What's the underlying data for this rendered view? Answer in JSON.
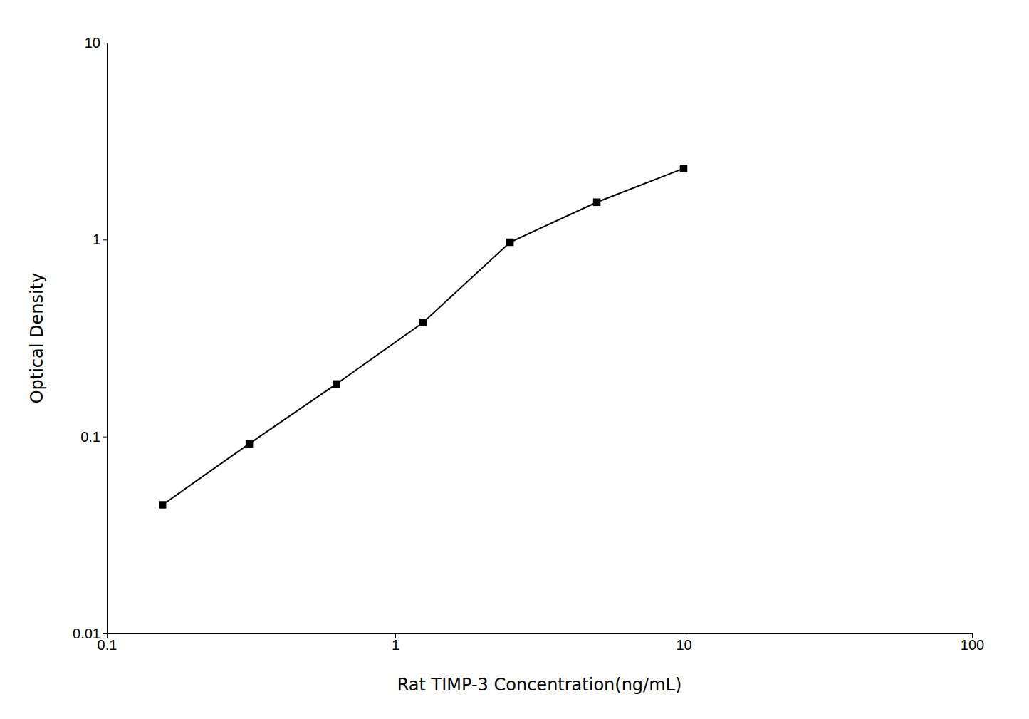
{
  "chart_data": {
    "type": "line",
    "x": [
      0.156,
      0.312,
      0.625,
      1.25,
      2.5,
      5.0,
      10.0
    ],
    "values": [
      0.045,
      0.092,
      0.185,
      0.38,
      0.97,
      1.55,
      2.3
    ],
    "xlabel": "Rat TIMP-3 Concentration(ng/mL)",
    "ylabel": "Optical Density",
    "xlim": [
      0.1,
      100
    ],
    "ylim": [
      0.01,
      10
    ],
    "xticks": [
      0.1,
      1,
      10,
      100
    ],
    "yticks": [
      0.01,
      0.1,
      1,
      10
    ],
    "log": true,
    "grid": false,
    "color": "#000000",
    "marker": "square"
  }
}
